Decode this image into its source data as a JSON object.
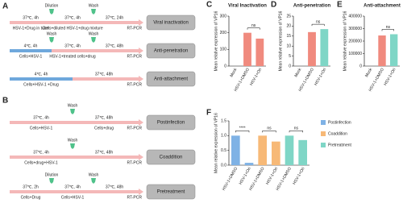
{
  "panel_a": {
    "label": "A",
    "rows": [
      {
        "steps": [
          "37℃, 4h",
          "37℃, 4h",
          "37℃, 24h"
        ],
        "markers": [
          "Dilution",
          "Wash"
        ],
        "notes": [
          "HSV-1+Drug in tube",
          "Cells+diluted HSV-1+drug mixture"
        ],
        "readout": "RT-PCR",
        "assay": "Viral inactivation"
      },
      {
        "steps": [
          "4℃, 4h",
          "37℃, 4h",
          "37℃, 48h"
        ],
        "markers": [
          "Wash",
          "Wash"
        ],
        "notes": [
          "Cells+HSV-1",
          "HSV-1+treated cells+drug"
        ],
        "readout": "RT-PCR",
        "assay": "Anti-penetration"
      },
      {
        "steps": [
          "4℃, 4h",
          "37℃, 48h"
        ],
        "notes": [
          "Cells+HSV-1 +Drug"
        ],
        "readout": "RT-PCR",
        "assay": "Anti-attachment"
      }
    ]
  },
  "panel_b": {
    "label": "B",
    "rows": [
      {
        "steps": [
          "37℃, 4h",
          "37℃, 48h"
        ],
        "markers": [
          "Wash"
        ],
        "notes": [
          "Cells+HSV-1",
          "Cells+drug"
        ],
        "readout": "RT-PCR",
        "assay": "Postinfection"
      },
      {
        "steps": [
          "37℃, 4h",
          "37℃, 48h"
        ],
        "markers": [
          "Wash"
        ],
        "notes": [
          "Cells+drug+HSV-1"
        ],
        "readout": "RT-PCR",
        "assay": "Coaddition"
      },
      {
        "steps": [
          "37℃, 2h",
          "37℃, 4h",
          "37℃, 48h"
        ],
        "markers": [
          "Dilution",
          "Wash"
        ],
        "notes": [
          "Cells+Drug",
          "Cells+HSV-1"
        ],
        "readout": "RT-PCR",
        "assay": "Pretreatment"
      }
    ]
  },
  "chart_data": [
    {
      "type": "bar",
      "label": "C",
      "title": "Viral Inactivation",
      "y_label": "Mean relative expression of VP16",
      "categories": [
        "Mock",
        "HSV-1+DMSO",
        "HSV-1+Ori"
      ],
      "values": [
        0,
        200,
        165
      ],
      "colors": [
        "#f08a7e",
        "#f08a7e",
        "#f08a7e"
      ],
      "ylim": [
        0,
        300
      ],
      "yticks": [
        0,
        100,
        200,
        300
      ],
      "annotations": [
        {
          "text": "ns"
        }
      ]
    },
    {
      "type": "bar",
      "label": "D",
      "title": "Anti-penetration",
      "y_label": "Mean relative expression of VP16",
      "categories": [
        "Mock",
        "HSV-1+DMSO",
        "HSV-1+Ori"
      ],
      "values": [
        0,
        17,
        18.5
      ],
      "colors": [
        "#f08a7e",
        "#f08a7e",
        "#7fd6c6"
      ],
      "ylim": [
        0,
        25
      ],
      "yticks": [
        0,
        5,
        10,
        15,
        20,
        25
      ],
      "annotations": [
        {
          "text": "ns"
        }
      ]
    },
    {
      "type": "bar",
      "label": "E",
      "title": "Anti-attachment",
      "y_label": "Mean relative expression of VP16",
      "categories": [
        "Mock",
        "HSV-1+DMSO",
        "HSV-1+Ori"
      ],
      "values": [
        0,
        245000,
        255000
      ],
      "colors": [
        "#f08a7e",
        "#f08a7e",
        "#7fd6c6"
      ],
      "ylim": [
        0,
        400000
      ],
      "yticks": [
        0,
        100000,
        200000,
        300000,
        400000
      ],
      "annotations": [
        {
          "text": "ns"
        }
      ]
    },
    {
      "type": "bar",
      "label": "F",
      "y_label": "Mean relative expression of VP16",
      "categories": [
        "HSV-1+DMSO",
        "HSV-1+Ori",
        "HSV-1+DMSO",
        "HSV-1+Ori",
        "HSV-1+DMSO",
        "HSV-1+Ori"
      ],
      "series": [
        {
          "name": "Postinfection",
          "color": "#7fb2e5",
          "values": [
            1.0,
            0.08,
            null,
            null,
            null,
            null
          ]
        },
        {
          "name": "Coaddition",
          "color": "#f7b977",
          "values": [
            null,
            null,
            1.0,
            0.8,
            null,
            null
          ]
        },
        {
          "name": "Pretreatment",
          "color": "#7fd6c6",
          "values": [
            null,
            null,
            null,
            null,
            1.0,
            0.85
          ]
        }
      ],
      "ylim": [
        0,
        1.5
      ],
      "yticks": [
        {
          "value": 0,
          "label": "0.0"
        },
        {
          "value": 0.5,
          "label": "0.5"
        },
        {
          "value": 1.0,
          "label": "1.0"
        },
        {
          "value": 1.5,
          "label": "1.5"
        }
      ],
      "annotations": [
        {
          "text": "****"
        },
        {
          "text": "ns"
        },
        {
          "text": "ns"
        }
      ]
    }
  ]
}
